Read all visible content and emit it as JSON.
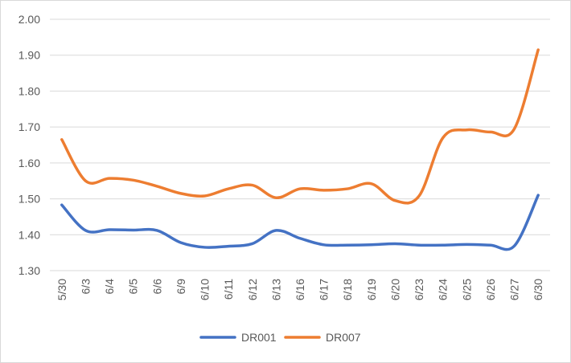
{
  "chart_data": {
    "type": "line",
    "title": "",
    "xlabel": "",
    "ylabel": "",
    "categories": [
      "5/30",
      "6/3",
      "6/4",
      "6/5",
      "6/6",
      "6/9",
      "6/10",
      "6/11",
      "6/12",
      "6/13",
      "6/16",
      "6/17",
      "6/18",
      "6/19",
      "6/20",
      "6/23",
      "6/24",
      "6/25",
      "6/26",
      "6/27",
      "6/30"
    ],
    "ylim": [
      1.3,
      2.0
    ],
    "yticks": [
      "1.30",
      "1.40",
      "1.50",
      "1.60",
      "1.70",
      "1.80",
      "1.90",
      "2.00"
    ],
    "grid": "horizontal",
    "legend": "bottom",
    "series": [
      {
        "name": "DR001",
        "color": "#4472c4",
        "values": [
          1.483,
          1.412,
          1.414,
          1.413,
          1.412,
          1.378,
          1.365,
          1.368,
          1.375,
          1.412,
          1.39,
          1.372,
          1.371,
          1.372,
          1.375,
          1.371,
          1.371,
          1.373,
          1.371,
          1.369,
          1.51
        ]
      },
      {
        "name": "DR007",
        "color": "#ed7d31",
        "values": [
          1.665,
          1.55,
          1.557,
          1.552,
          1.535,
          1.515,
          1.508,
          1.528,
          1.538,
          1.503,
          1.528,
          1.524,
          1.528,
          1.542,
          1.495,
          1.508,
          1.67,
          1.692,
          1.686,
          1.695,
          1.915
        ]
      }
    ]
  }
}
